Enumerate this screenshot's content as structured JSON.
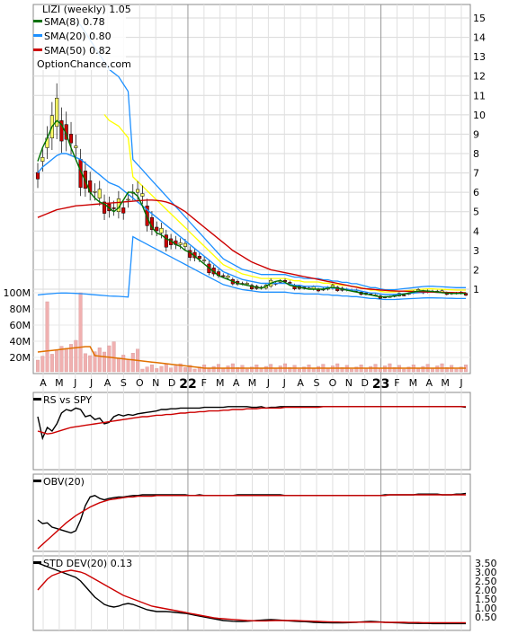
{
  "chart_data": [
    {
      "type": "candlestick",
      "title": "LIZI (weekly) 1.05",
      "watermark": "OptionChance.com",
      "y_ticks": [
        "1",
        "2",
        "3",
        "4",
        "5",
        "6",
        "7",
        "8",
        "9",
        "10",
        "11",
        "12",
        "13",
        "14",
        "15"
      ],
      "ylim": [
        0,
        15.7
      ],
      "volume_ticks": [
        "20M",
        "40M",
        "60M",
        "80M",
        "100M"
      ],
      "x_ticks": [
        "A",
        "M",
        "J",
        "J",
        "A",
        "S",
        "O",
        "N",
        "D",
        "22",
        "F",
        "M",
        "A",
        "M",
        "J",
        "J",
        "A",
        "S",
        "O",
        "N",
        "D",
        "23",
        "F",
        "M",
        "A",
        "M",
        "J"
      ],
      "legend": [
        {
          "label": "SMA(8) 0.78",
          "color": "#007000"
        },
        {
          "label": "SMA(20) 0.80",
          "color": "#1e90ff"
        },
        {
          "label": "SMA(50) 0.82",
          "color": "#cc0000"
        }
      ],
      "colors": {
        "up": "#ffff66",
        "down": "#cc0000",
        "bollinger": "#1e90ff",
        "envelope": "#ffff00",
        "volume": "#f0b0b0",
        "volume_ma": "#e07000"
      },
      "series": [
        {
          "name": "SMA(8) 0.78",
          "values": [
            7.6,
            8.3,
            8.8,
            9.4,
            9.7,
            9.5,
            9.0,
            8.3,
            7.7,
            7.1,
            6.6,
            6.0,
            5.7,
            5.5,
            5.4,
            5.2,
            5.0,
            5.2,
            5.6,
            6.0,
            6.0,
            5.8,
            5.3,
            4.7,
            4.2,
            3.9,
            3.8,
            3.6,
            3.5,
            3.3,
            3.2,
            3.0,
            2.9,
            2.7,
            2.5,
            2.3,
            2.1,
            1.9,
            1.7,
            1.6,
            1.5,
            1.4,
            1.3,
            1.25,
            1.2,
            1.15,
            1.1,
            1.05,
            1.15,
            1.3,
            1.4,
            1.45,
            1.35,
            1.2,
            1.15,
            1.1,
            1.05,
            1.0,
            1.0,
            1.0,
            1.0,
            1.05,
            1.1,
            1.05,
            1.0,
            0.95,
            0.9,
            0.85,
            0.8,
            0.75,
            0.7,
            0.65,
            0.6,
            0.6,
            0.62,
            0.65,
            0.7,
            0.75,
            0.8,
            0.85,
            0.9,
            0.92,
            0.9,
            0.88,
            0.85,
            0.82,
            0.8,
            0.78,
            0.78,
            0.78,
            0.78
          ]
        },
        {
          "name": "SMA(20) 0.80",
          "values": [
            7.0,
            7.3,
            7.5,
            7.7,
            7.9,
            8.0,
            8.0,
            7.9,
            7.8,
            7.7,
            7.5,
            7.3,
            7.1,
            6.9,
            6.7,
            6.5,
            6.4,
            6.3,
            6.1,
            5.9,
            5.7,
            5.5,
            5.3,
            5.1,
            4.9,
            4.7,
            4.5,
            4.3,
            4.1,
            3.9,
            3.7,
            3.5,
            3.3,
            3.1,
            2.9,
            2.7,
            2.5,
            2.3,
            2.1,
            1.9,
            1.8,
            1.7,
            1.6,
            1.5,
            1.45,
            1.4,
            1.35,
            1.3,
            1.3,
            1.3,
            1.3,
            1.3,
            1.3,
            1.25,
            1.2,
            1.2,
            1.15,
            1.15,
            1.15,
            1.15,
            1.1,
            1.1,
            1.05,
            1.05,
            1.0,
            1.0,
            0.95,
            0.95,
            0.9,
            0.85,
            0.8,
            0.8,
            0.75,
            0.72,
            0.72,
            0.72,
            0.74,
            0.76,
            0.78,
            0.8,
            0.82,
            0.84,
            0.85,
            0.85,
            0.84,
            0.83,
            0.82,
            0.81,
            0.8,
            0.8,
            0.8
          ]
        },
        {
          "name": "SMA(50) 0.82",
          "values": [
            4.7,
            4.8,
            4.9,
            5.0,
            5.1,
            5.15,
            5.2,
            5.25,
            5.3,
            5.32,
            5.34,
            5.36,
            5.38,
            5.4,
            5.42,
            5.44,
            5.46,
            5.48,
            5.5,
            5.52,
            5.54,
            5.56,
            5.58,
            5.6,
            5.6,
            5.58,
            5.55,
            5.5,
            5.42,
            5.3,
            5.15,
            5.0,
            4.8,
            4.6,
            4.4,
            4.2,
            4.0,
            3.8,
            3.6,
            3.4,
            3.2,
            3.0,
            2.85,
            2.7,
            2.55,
            2.4,
            2.3,
            2.2,
            2.1,
            2.0,
            1.95,
            1.9,
            1.85,
            1.8,
            1.75,
            1.7,
            1.65,
            1.6,
            1.55,
            1.5,
            1.45,
            1.4,
            1.35,
            1.3,
            1.25,
            1.2,
            1.15,
            1.1,
            1.05,
            1.02,
            1.0,
            0.98,
            0.96,
            0.94,
            0.92,
            0.91,
            0.9,
            0.9,
            0.89,
            0.88,
            0.87,
            0.86,
            0.85,
            0.85,
            0.84,
            0.84,
            0.83,
            0.83,
            0.82,
            0.82,
            0.82
          ]
        }
      ]
    },
    {
      "type": "line",
      "title": "RS vs SPY",
      "series": [
        {
          "name": "RS vs SPY",
          "color": "#000000",
          "values": [
            70,
            40,
            55,
            50,
            60,
            75,
            80,
            78,
            82,
            80,
            70,
            72,
            66,
            68,
            60,
            62,
            70,
            73,
            71,
            73,
            72,
            74,
            75,
            76,
            77,
            78,
            80,
            80,
            81,
            81,
            82,
            82,
            82,
            82,
            82,
            83,
            83,
            83,
            83,
            83,
            84,
            84,
            84,
            84,
            84,
            83,
            83,
            84,
            82,
            83,
            83,
            84,
            84,
            84,
            84,
            84,
            84,
            84,
            84,
            84,
            84,
            84,
            84,
            84,
            84,
            84,
            84,
            84,
            84,
            84,
            84,
            84,
            84,
            84,
            84,
            84,
            84,
            84,
            84,
            84,
            84,
            84,
            84,
            84,
            84,
            84,
            84,
            84,
            84,
            84,
            83
          ]
        },
        {
          "name": "MA",
          "color": "#cc0000",
          "values": [
            50,
            48,
            46,
            47,
            49,
            51,
            53,
            55,
            56,
            57,
            58,
            59,
            60,
            61,
            62,
            63,
            64,
            65,
            66,
            67,
            68,
            69,
            70,
            70,
            71,
            72,
            72,
            73,
            73,
            74,
            75,
            75,
            76,
            76,
            77,
            77,
            78,
            78,
            78,
            79,
            79,
            80,
            80,
            80,
            81,
            81,
            81,
            82,
            82,
            82,
            82,
            82,
            83,
            83,
            83,
            83,
            83,
            83,
            83,
            83,
            84,
            84,
            84,
            84,
            84,
            84,
            84,
            84,
            84,
            84,
            84,
            84,
            84,
            84,
            84,
            84,
            84,
            84,
            84,
            84,
            84,
            84,
            84,
            84,
            84,
            84,
            84,
            84,
            84,
            84,
            84
          ]
        }
      ]
    },
    {
      "type": "line",
      "title": "OBV(20)",
      "series": [
        {
          "name": "OBV(20)",
          "color": "#000000",
          "values": [
            40,
            35,
            36,
            30,
            28,
            26,
            24,
            22,
            25,
            40,
            60,
            72,
            74,
            70,
            68,
            70,
            71,
            72,
            72,
            73,
            74,
            74,
            75,
            75,
            75,
            75,
            75,
            75,
            75,
            75,
            75,
            75,
            74,
            74,
            75,
            74,
            74,
            74,
            74,
            74,
            74,
            74,
            75,
            75,
            75,
            75,
            75,
            75,
            75,
            75,
            75,
            75,
            74,
            74,
            74,
            74,
            74,
            74,
            74,
            74,
            74,
            74,
            74,
            74,
            74,
            74,
            74,
            74,
            74,
            74,
            74,
            74,
            74,
            75,
            75,
            75,
            75,
            75,
            75,
            75,
            76,
            76,
            76,
            76,
            76,
            75,
            75,
            75,
            76,
            76,
            77
          ]
        },
        {
          "name": "MA",
          "color": "#cc0000",
          "values": [
            0,
            6,
            12,
            18,
            24,
            30,
            36,
            41,
            46,
            50,
            54,
            58,
            61,
            64,
            66,
            68,
            69,
            70,
            71,
            72,
            72,
            73,
            73,
            73,
            73,
            74,
            74,
            74,
            74,
            74,
            74,
            74,
            74,
            74,
            74,
            74,
            74,
            74,
            74,
            74,
            74,
            74,
            74,
            74,
            74,
            74,
            74,
            74,
            74,
            74,
            74,
            74,
            74,
            74,
            74,
            74,
            74,
            74,
            74,
            74,
            74,
            74,
            74,
            74,
            74,
            74,
            74,
            74,
            74,
            74,
            74,
            74,
            74,
            74,
            75,
            75,
            75,
            75,
            75,
            75,
            75,
            75,
            75,
            75,
            75,
            75,
            75,
            75,
            75,
            75,
            75
          ]
        }
      ]
    },
    {
      "type": "line",
      "title": "STD DEV(20) 0.13",
      "y_ticks": [
        "0.50",
        "1.00",
        "1.50",
        "2.00",
        "2.50",
        "3.00",
        "3.50"
      ],
      "ylim": [
        0,
        3.7
      ],
      "series": [
        {
          "name": "STD DEV(20)",
          "color": "#000000",
          "values": [
            3.5,
            3.4,
            3.3,
            3.2,
            3.1,
            3.0,
            2.9,
            2.8,
            2.7,
            2.5,
            2.2,
            1.9,
            1.6,
            1.4,
            1.2,
            1.1,
            1.05,
            1.1,
            1.2,
            1.25,
            1.2,
            1.1,
            1.0,
            0.9,
            0.85,
            0.8,
            0.8,
            0.8,
            0.78,
            0.75,
            0.72,
            0.7,
            0.65,
            0.6,
            0.55,
            0.5,
            0.45,
            0.4,
            0.35,
            0.3,
            0.28,
            0.26,
            0.25,
            0.25,
            0.26,
            0.28,
            0.3,
            0.32,
            0.34,
            0.35,
            0.34,
            0.32,
            0.3,
            0.28,
            0.26,
            0.25,
            0.24,
            0.22,
            0.2,
            0.19,
            0.18,
            0.18,
            0.17,
            0.17,
            0.17,
            0.18,
            0.19,
            0.2,
            0.22,
            0.24,
            0.25,
            0.24,
            0.22,
            0.2,
            0.19,
            0.18,
            0.17,
            0.16,
            0.15,
            0.15,
            0.14,
            0.14,
            0.14,
            0.13,
            0.13,
            0.13,
            0.13,
            0.13,
            0.13,
            0.13,
            0.13
          ]
        },
        {
          "name": "MA",
          "color": "#cc0000",
          "values": [
            2.0,
            2.3,
            2.6,
            2.8,
            2.9,
            3.0,
            3.05,
            3.1,
            3.05,
            3.0,
            2.9,
            2.75,
            2.6,
            2.45,
            2.3,
            2.15,
            2.0,
            1.85,
            1.7,
            1.6,
            1.5,
            1.4,
            1.3,
            1.2,
            1.1,
            1.05,
            1.0,
            0.95,
            0.9,
            0.85,
            0.8,
            0.75,
            0.7,
            0.65,
            0.6,
            0.55,
            0.5,
            0.45,
            0.42,
            0.4,
            0.38,
            0.36,
            0.34,
            0.32,
            0.3,
            0.29,
            0.28,
            0.28,
            0.28,
            0.29,
            0.3,
            0.3,
            0.3,
            0.3,
            0.3,
            0.29,
            0.28,
            0.27,
            0.26,
            0.25,
            0.24,
            0.23,
            0.22,
            0.22,
            0.21,
            0.21,
            0.21,
            0.21,
            0.21,
            0.21,
            0.21,
            0.21,
            0.21,
            0.2,
            0.2,
            0.2,
            0.2,
            0.2,
            0.19,
            0.19,
            0.19,
            0.18,
            0.18,
            0.18,
            0.18,
            0.18,
            0.18,
            0.18,
            0.18,
            0.18,
            0.18
          ]
        }
      ]
    }
  ]
}
